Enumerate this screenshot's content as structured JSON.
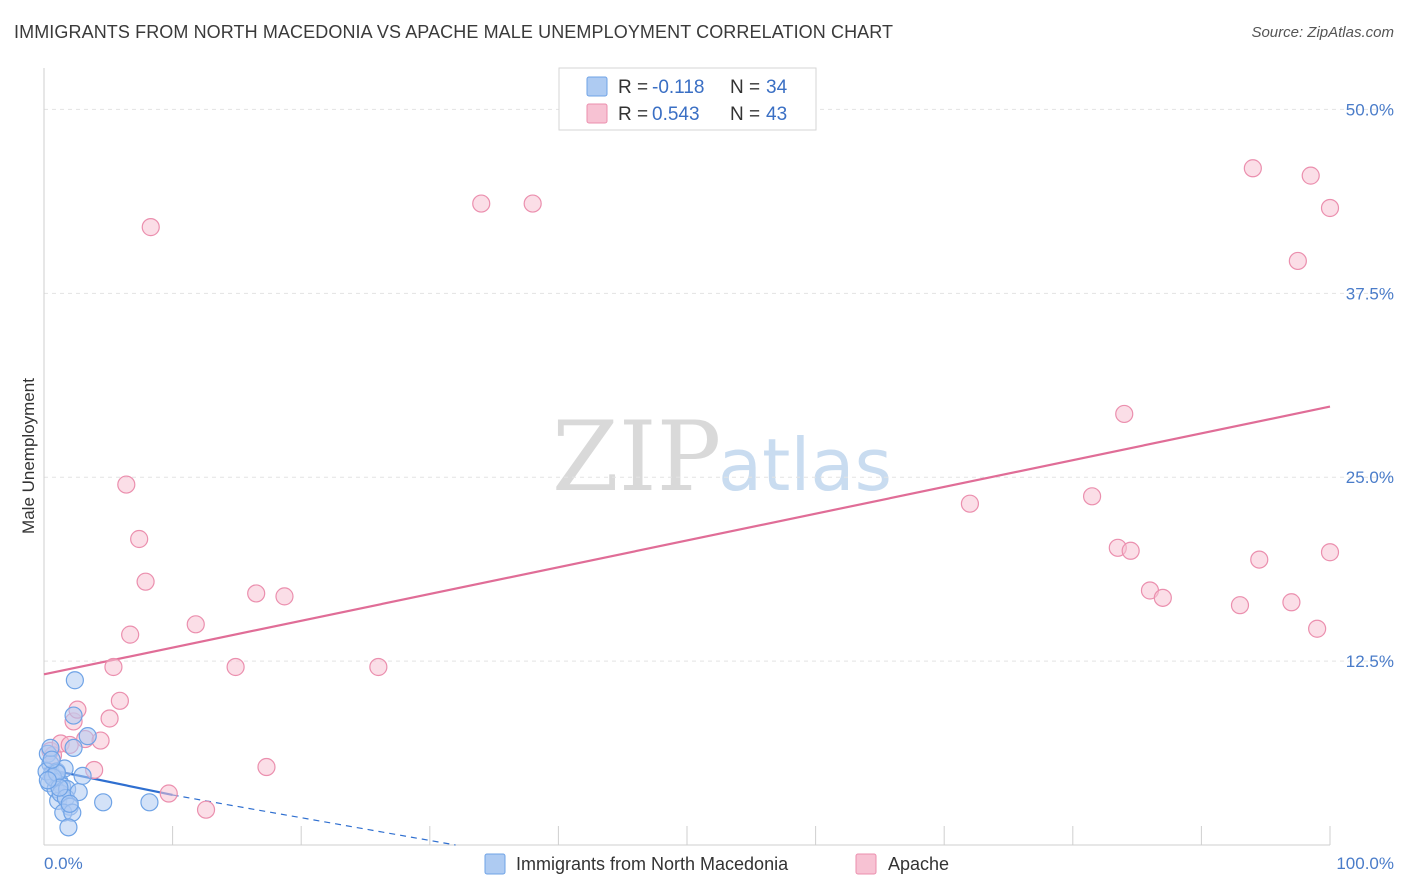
{
  "title": "IMMIGRANTS FROM NORTH MACEDONIA VS APACHE MALE UNEMPLOYMENT CORRELATION CHART",
  "source": "Source: ZipAtlas.com",
  "watermark": {
    "zip": "ZIP",
    "atlas": "atlas"
  },
  "chart_data": {
    "type": "scatter",
    "title": "IMMIGRANTS FROM NORTH MACEDONIA VS APACHE MALE UNEMPLOYMENT CORRELATION CHART",
    "xlabel": "",
    "ylabel": "Male Unemployment",
    "xlim": [
      0,
      100
    ],
    "ylim": [
      0,
      52
    ],
    "x_tick_labels": [
      "0.0%",
      "100.0%"
    ],
    "y_ticks": [
      12.5,
      25.0,
      37.5,
      50.0
    ],
    "y_tick_labels": [
      "12.5%",
      "25.0%",
      "37.5%",
      "50.0%"
    ],
    "grid": true,
    "legend": {
      "placement": "top-center",
      "entries": [
        {
          "r_label": "R = ",
          "r_value": "-0.118",
          "n_label": "N = ",
          "n_value": "34"
        },
        {
          "r_label": "R = ",
          "r_value": "0.543",
          "n_label": "N = ",
          "n_value": "43"
        }
      ]
    },
    "series": [
      {
        "name": "Immigrants from North Macedonia",
        "color": "#6fa3e6",
        "fill": "#aecbf2",
        "line_color": "#2f6fd0",
        "trend": {
          "x0": 0,
          "y0": 5.2,
          "x1": 10,
          "y1": 3.4,
          "dashed_to_x": 32,
          "dashed_to_y": -0.2
        },
        "points": [
          [
            0.3,
            6.2
          ],
          [
            0.5,
            5.5
          ],
          [
            0.6,
            4.8
          ],
          [
            0.8,
            4.5
          ],
          [
            0.4,
            4.2
          ],
          [
            1.0,
            5.0
          ],
          [
            1.2,
            4.3
          ],
          [
            1.4,
            4.0
          ],
          [
            0.9,
            3.8
          ],
          [
            1.6,
            5.2
          ],
          [
            1.1,
            3.0
          ],
          [
            1.3,
            3.5
          ],
          [
            1.8,
            3.8
          ],
          [
            1.7,
            3.2
          ],
          [
            2.0,
            2.6
          ],
          [
            1.5,
            2.2
          ],
          [
            2.2,
            2.2
          ],
          [
            1.9,
            1.2
          ],
          [
            2.3,
            6.6
          ],
          [
            2.4,
            11.2
          ],
          [
            2.3,
            8.8
          ],
          [
            2.7,
            3.6
          ],
          [
            3.0,
            4.7
          ],
          [
            3.4,
            7.4
          ],
          [
            4.6,
            2.9
          ],
          [
            8.2,
            2.9
          ],
          [
            0.2,
            5.0
          ],
          [
            0.7,
            4.6
          ],
          [
            1.0,
            4.9
          ],
          [
            0.5,
            6.6
          ],
          [
            1.2,
            3.9
          ],
          [
            0.3,
            4.4
          ],
          [
            0.6,
            5.8
          ],
          [
            2.0,
            2.8
          ]
        ]
      },
      {
        "name": "Apache",
        "color": "#eb8fae",
        "fill": "#f7c2d3",
        "line_color": "#e06d97",
        "trend": {
          "x0": 0,
          "y0": 11.6,
          "x1": 100,
          "y1": 29.8
        },
        "points": [
          [
            0.5,
            6.4
          ],
          [
            0.7,
            6.1
          ],
          [
            1.3,
            6.9
          ],
          [
            2.0,
            6.8
          ],
          [
            2.3,
            8.4
          ],
          [
            2.6,
            9.2
          ],
          [
            3.2,
            7.2
          ],
          [
            3.9,
            5.1
          ],
          [
            4.4,
            7.1
          ],
          [
            5.1,
            8.6
          ],
          [
            5.4,
            12.1
          ],
          [
            5.9,
            9.8
          ],
          [
            6.4,
            24.5
          ],
          [
            6.7,
            14.3
          ],
          [
            7.4,
            20.8
          ],
          [
            7.9,
            17.9
          ],
          [
            8.3,
            42.0
          ],
          [
            9.7,
            3.5
          ],
          [
            11.8,
            15.0
          ],
          [
            12.6,
            2.4
          ],
          [
            14.9,
            12.1
          ],
          [
            17.3,
            5.3
          ],
          [
            16.5,
            17.1
          ],
          [
            18.7,
            16.9
          ],
          [
            26.0,
            12.1
          ],
          [
            34.0,
            43.6
          ],
          [
            38.0,
            43.6
          ],
          [
            72.0,
            23.2
          ],
          [
            81.5,
            23.7
          ],
          [
            84.0,
            29.3
          ],
          [
            83.5,
            20.2
          ],
          [
            84.5,
            20.0
          ],
          [
            86.0,
            17.3
          ],
          [
            87.0,
            16.8
          ],
          [
            93.0,
            16.3
          ],
          [
            94.0,
            46.0
          ],
          [
            94.5,
            19.4
          ],
          [
            97.0,
            16.5
          ],
          [
            97.5,
            39.7
          ],
          [
            98.5,
            45.5
          ],
          [
            99.0,
            14.7
          ],
          [
            100.5,
            43.3
          ],
          [
            104.0,
            19.9
          ]
        ]
      }
    ]
  }
}
